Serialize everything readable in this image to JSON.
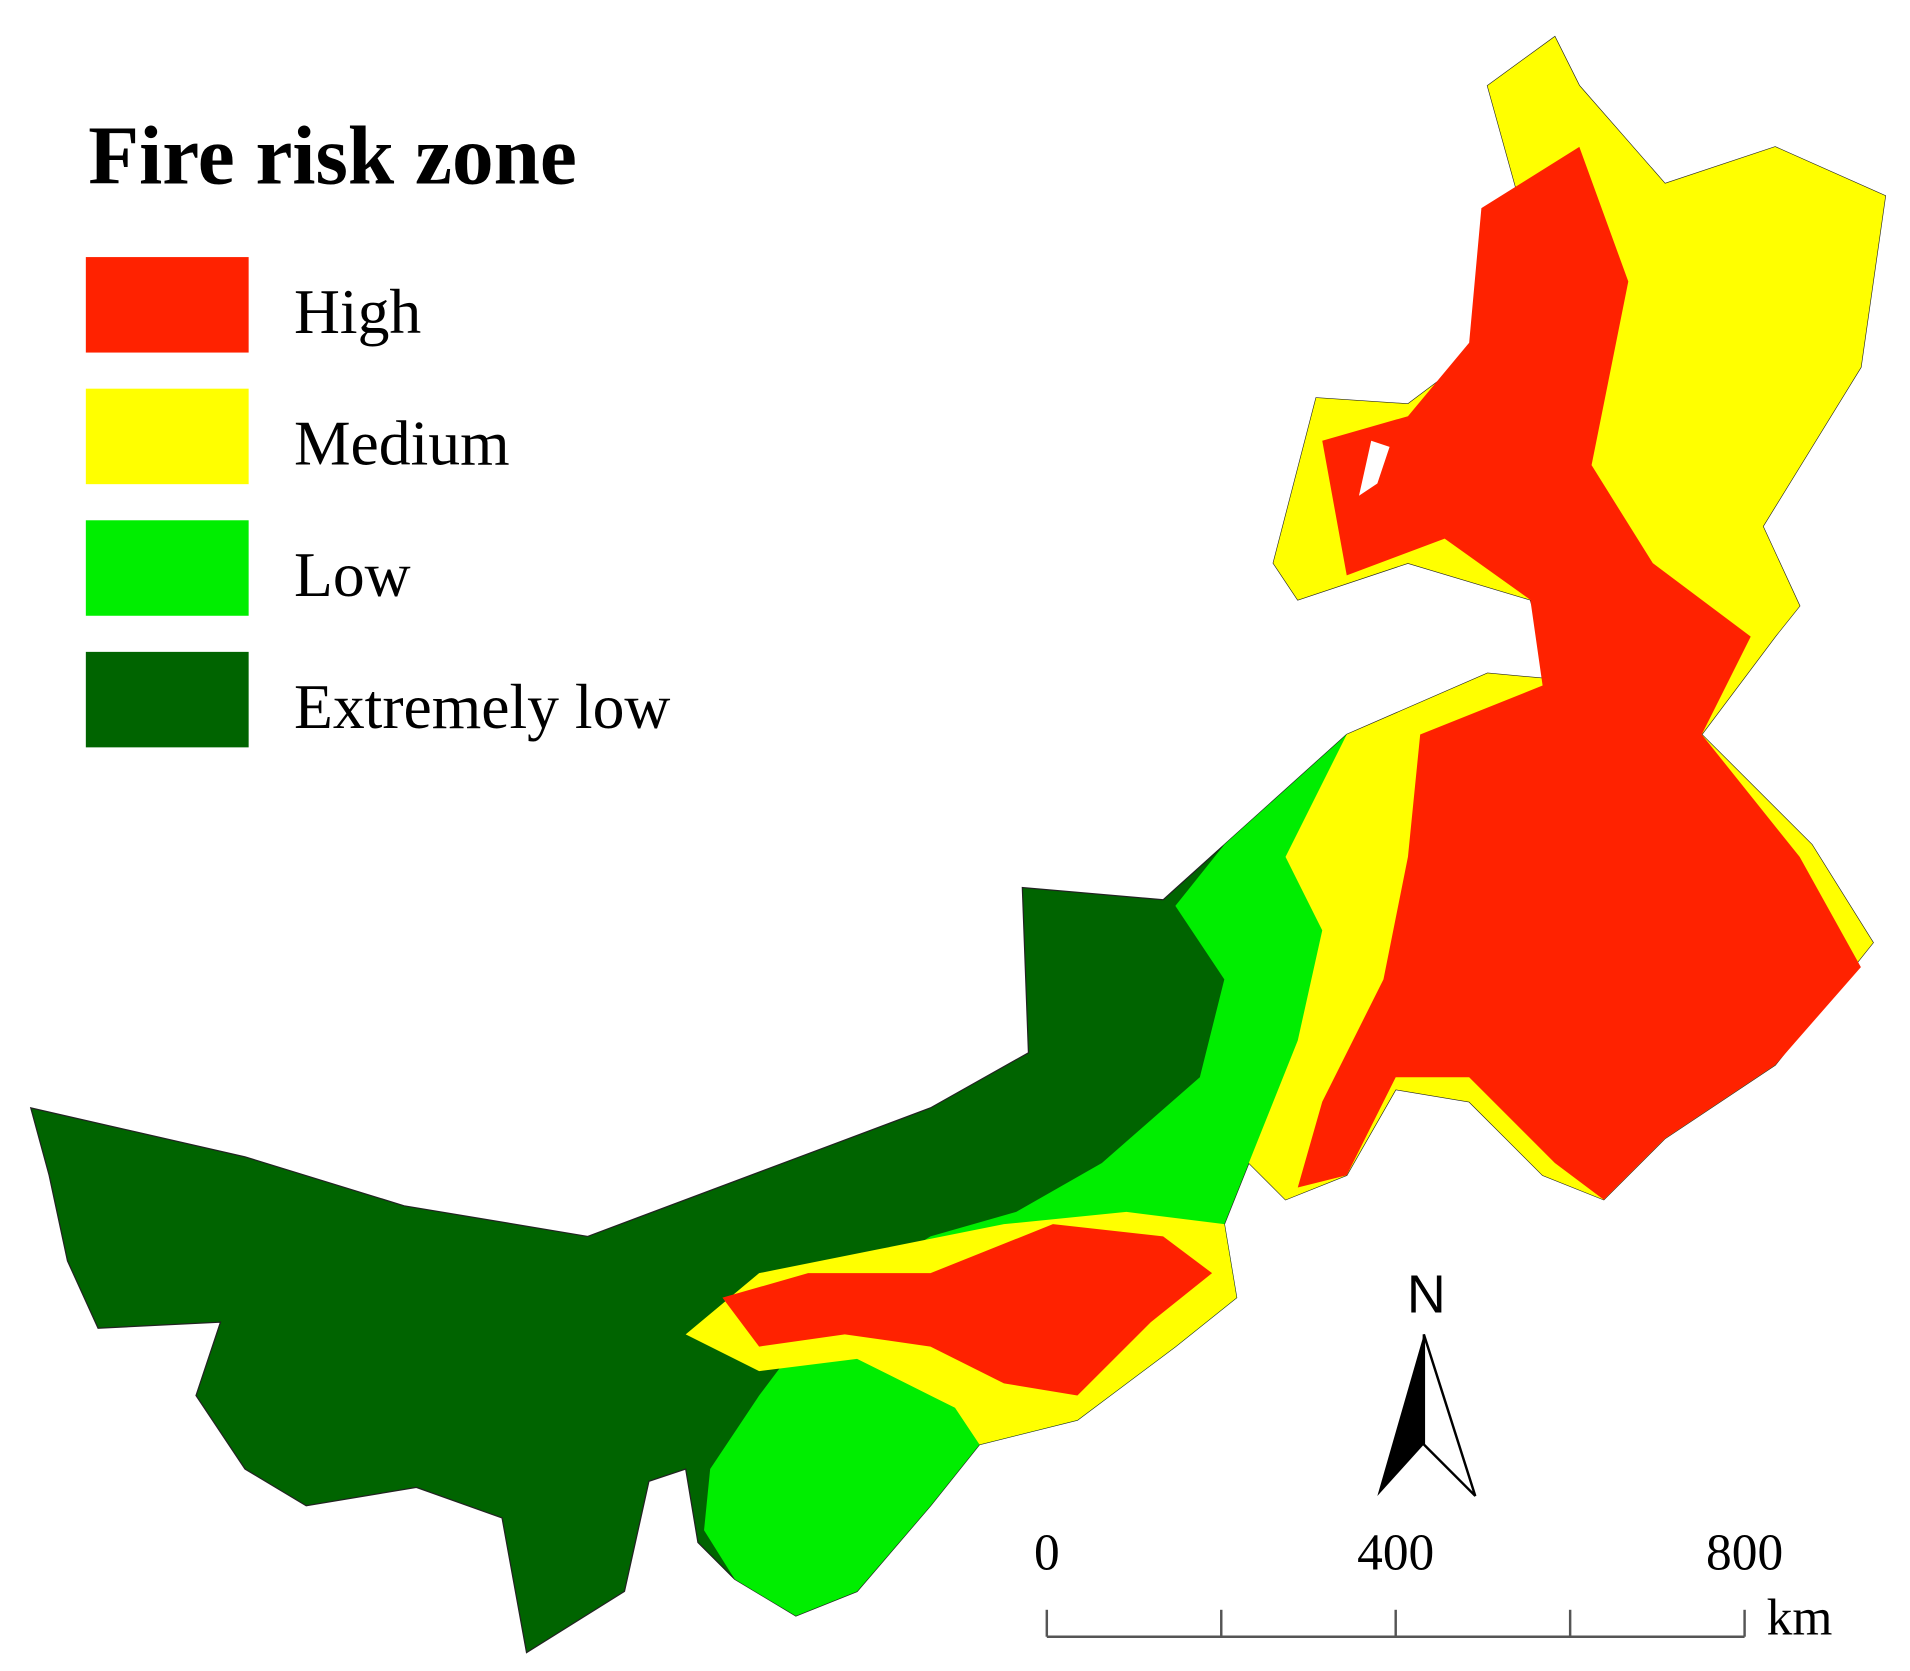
{
  "legend": {
    "title": "Fire risk zone",
    "items": [
      {
        "label": "High",
        "color": "#ff2200"
      },
      {
        "label": "Medium",
        "color": "#ffff00"
      },
      {
        "label": "Low",
        "color": "#00ee00"
      },
      {
        "label": "Extremely low",
        "color": "#006400"
      }
    ]
  },
  "north_arrow": {
    "label": "N"
  },
  "scale_bar": {
    "xlim": [
      0,
      800
    ],
    "ticks": [
      0,
      400,
      800
    ],
    "minor_ticks": [
      200,
      600
    ],
    "unit": "km"
  }
}
